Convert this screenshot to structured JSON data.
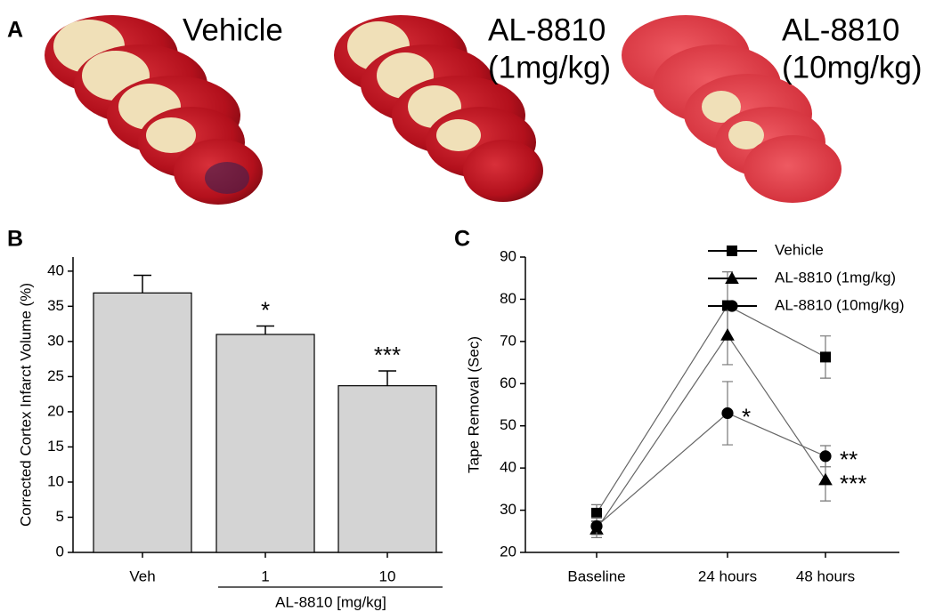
{
  "panel_a": {
    "label": "A",
    "groups": [
      {
        "lines": [
          "Vehicle"
        ]
      },
      {
        "lines": [
          "AL-8810",
          "(1mg/kg)"
        ]
      },
      {
        "lines": [
          "AL-8810",
          "(10mg/kg)"
        ]
      }
    ]
  },
  "chart_data": [
    {
      "type": "bar",
      "panel_label": "B",
      "ylabel": "Corrected Cortex Infarct Volume (%)",
      "xlabel": "AL-8810 [mg/kg]",
      "categories": [
        "Veh",
        "1",
        "10"
      ],
      "values": [
        36.9,
        31.0,
        23.7
      ],
      "errors": [
        2.5,
        1.2,
        2.1
      ],
      "annotations": [
        null,
        "*",
        "***"
      ],
      "color": "#d4d4d4",
      "ylim": [
        0,
        42
      ],
      "yticks": [
        0,
        5,
        10,
        15,
        20,
        25,
        30,
        35,
        40
      ]
    },
    {
      "type": "line",
      "panel_label": "C",
      "ylabel": "Tape Removal (Sec)",
      "categories": [
        "Baseline",
        "24 hours",
        "48 hours"
      ],
      "series": [
        {
          "name": "Vehicle",
          "marker": "square",
          "color": "#000000",
          "values": [
            29.3,
            78.5,
            66.3
          ],
          "errors": [
            2,
            8,
            5
          ],
          "annotations": [
            null,
            null,
            null
          ]
        },
        {
          "name": "AL-8810 (1mg/kg)",
          "marker": "triangle",
          "color": "#000000",
          "values": [
            25.5,
            71.5,
            37.2
          ],
          "errors": [
            2,
            7,
            5
          ],
          "annotations": [
            null,
            null,
            "***"
          ]
        },
        {
          "name": "AL-8810 (10mg/kg)",
          "marker": "circle",
          "color": "#000000",
          "values": [
            26.2,
            53,
            42.8
          ],
          "errors": [
            2,
            7.5,
            2.5
          ],
          "annotations": [
            null,
            "*",
            "**"
          ]
        }
      ],
      "ylim": [
        20,
        90
      ],
      "yticks": [
        20,
        30,
        40,
        50,
        60,
        70,
        80,
        90
      ]
    }
  ]
}
